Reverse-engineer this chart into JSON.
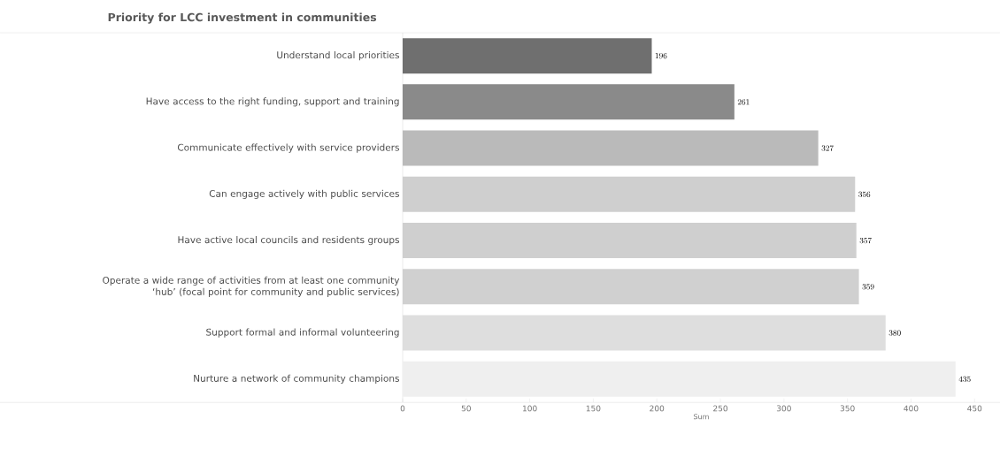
{
  "chart_data": {
    "type": "bar",
    "orientation": "horizontal",
    "title": "Priority for LCC investment in communities",
    "xlabel": "Sum",
    "categories": [
      "Understand local priorities",
      "Have access to the right funding, support and training",
      "Communicate effectively with service providers",
      "Can engage actively with public services",
      "Have active local councils and residents groups",
      "Operate a wide range of activities from at least one community ‘hub’ (focal point for community and public services)",
      "Support formal and informal volunteering",
      "Nurture a network of community champions"
    ],
    "values": [
      196,
      261,
      327,
      356,
      357,
      359,
      380,
      435
    ],
    "colors": [
      "#6f6f6f",
      "#8a8a8a",
      "#bababa",
      "#cfcfcf",
      "#cfcfcf",
      "#d0d0d0",
      "#dedede",
      "#efefef"
    ],
    "xlim": [
      0,
      470
    ],
    "xticks": [
      0,
      50,
      100,
      150,
      200,
      250,
      300,
      350,
      400,
      450
    ],
    "data_labels": true
  }
}
